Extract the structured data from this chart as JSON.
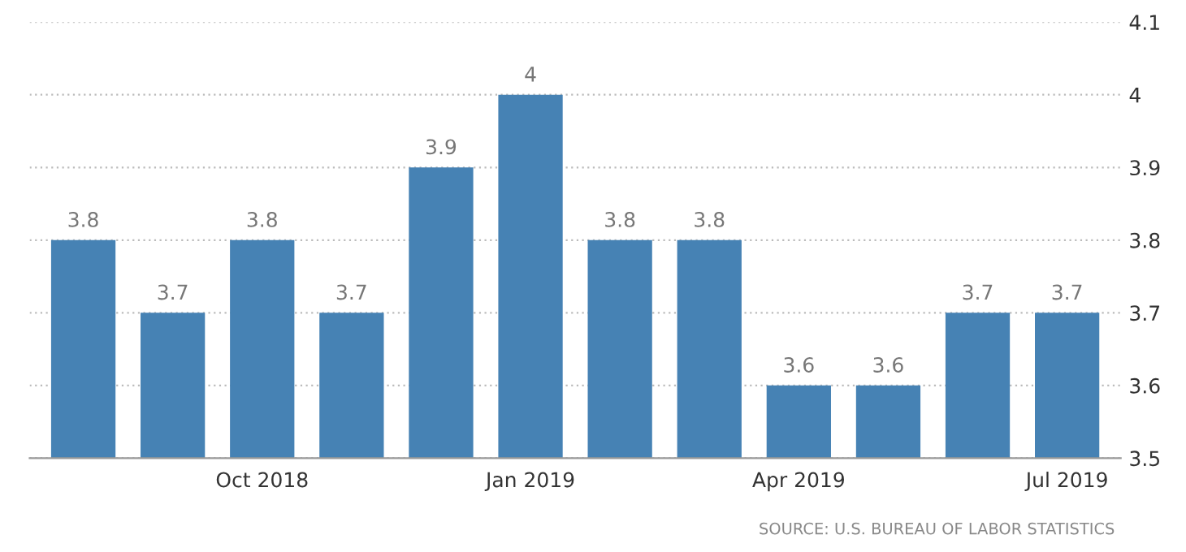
{
  "chart_data": {
    "type": "bar",
    "categories": [
      null,
      null,
      "Oct 2018",
      null,
      null,
      "Jan 2019",
      null,
      null,
      "Apr 2019",
      null,
      null,
      "Jul 2019"
    ],
    "values": [
      3.8,
      3.7,
      3.8,
      3.7,
      3.9,
      4,
      3.8,
      3.8,
      3.6,
      3.6,
      3.7,
      3.7
    ],
    "color": "#4682b4",
    "ylim": [
      3.5,
      4.1
    ],
    "yticks": [
      3.5,
      3.6,
      3.7,
      3.8,
      3.9,
      4,
      4.1
    ],
    "grid": "y",
    "data_labels": true,
    "annotations": [
      "SOURCE: U.S. BUREAU OF LABOR STATISTICS"
    ]
  }
}
